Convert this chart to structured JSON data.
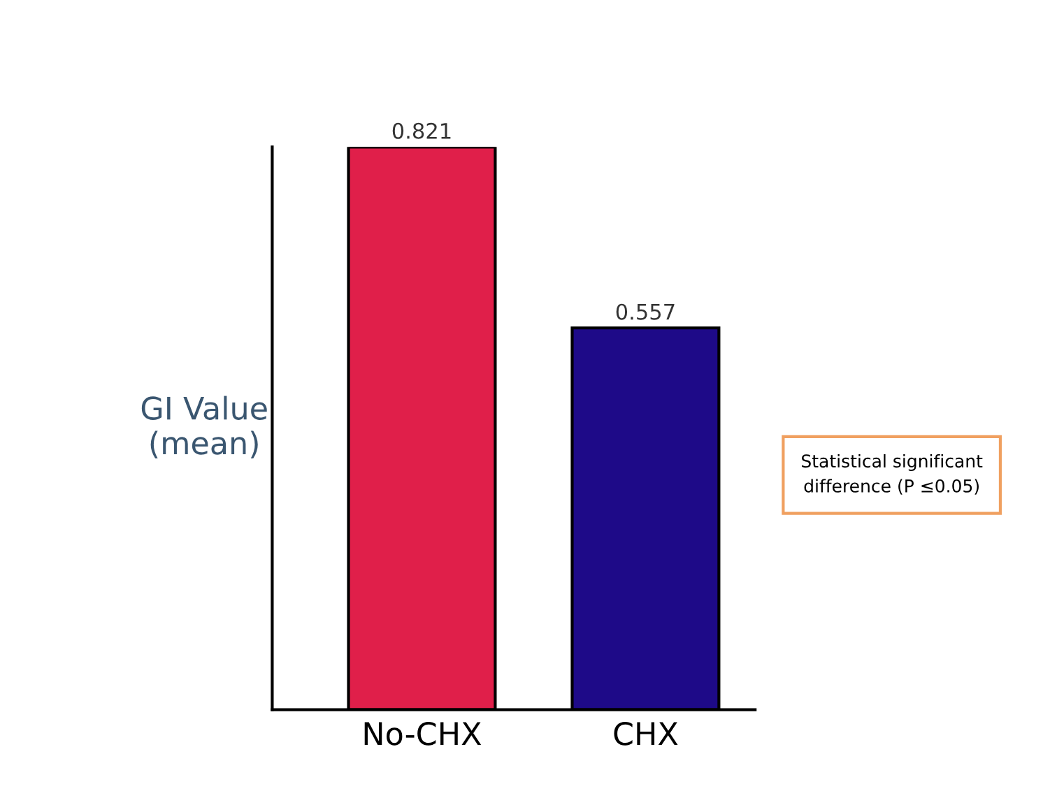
{
  "chart_data": {
    "type": "bar",
    "ylabel": "GI Value\n(mean)",
    "categories": [
      "No-CHX",
      "CHX"
    ],
    "values": [
      0.821,
      0.557
    ],
    "colors": [
      "#e01f4a",
      "#1e0a88"
    ],
    "data_labels": true,
    "grid": false,
    "legend": false,
    "annotations": [
      "Statistical significant\ndifference (P ≤0.05)"
    ]
  }
}
